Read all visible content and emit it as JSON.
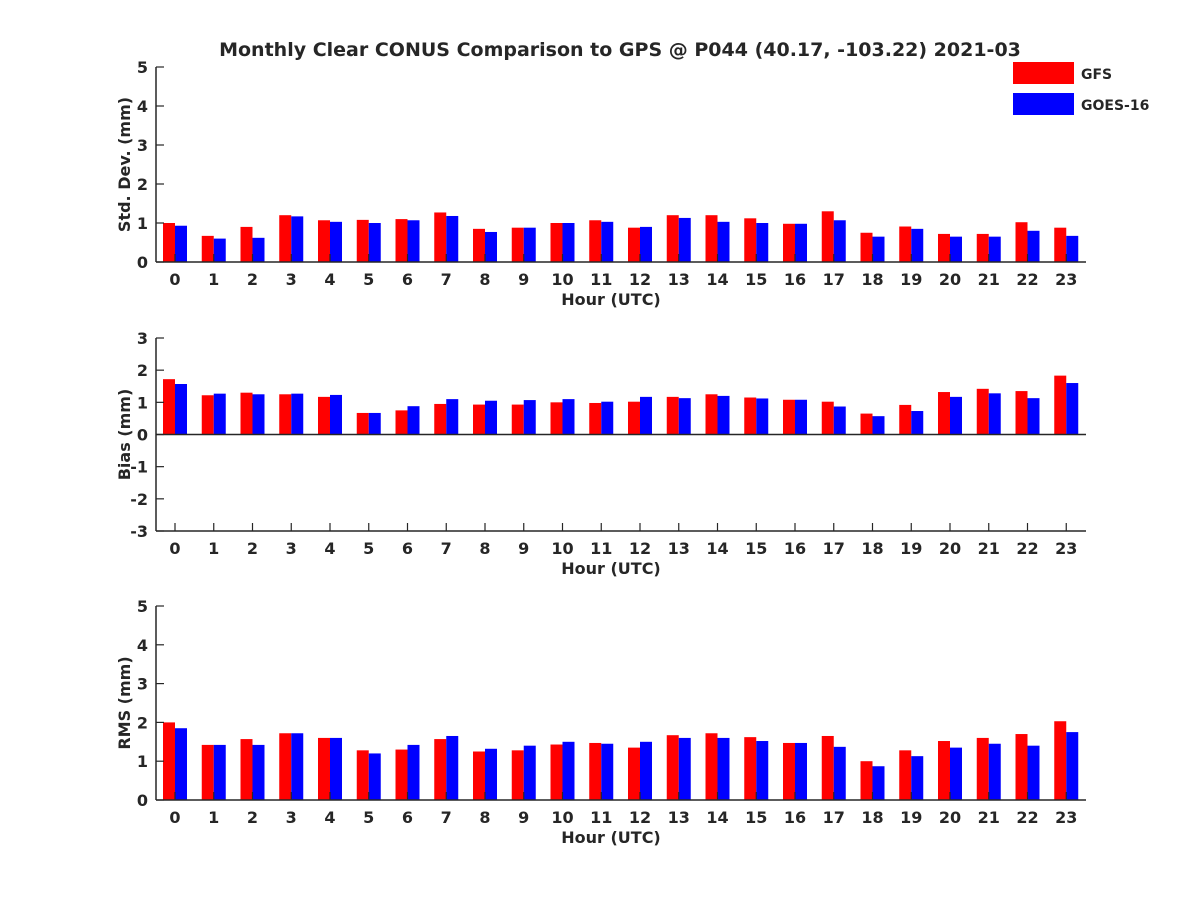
{
  "chart_data": {
    "title": "Monthly Clear CONUS Comparison to GPS @ P044 (40.17, -103.22) 2021-03",
    "legend": {
      "placement": "top-right",
      "entries": [
        {
          "name": "GFS",
          "color": "#ff0000"
        },
        {
          "name": "GOES-16",
          "color": "#0000ff"
        }
      ]
    },
    "categories": [
      "0",
      "1",
      "2",
      "3",
      "4",
      "5",
      "6",
      "7",
      "8",
      "9",
      "10",
      "11",
      "12",
      "13",
      "14",
      "15",
      "16",
      "17",
      "18",
      "19",
      "20",
      "21",
      "22",
      "23"
    ],
    "panels": [
      {
        "type": "bar",
        "xlabel": "Hour (UTC)",
        "ylabel": "Std. Dev. (mm)",
        "ylim": [
          0,
          5
        ],
        "yticks": [
          "0",
          "1",
          "2",
          "3",
          "4",
          "5"
        ],
        "series": [
          {
            "name": "GFS",
            "color": "#ff0000",
            "values": [
              1.0,
              0.67,
              0.9,
              1.2,
              1.07,
              1.08,
              1.1,
              1.27,
              0.85,
              0.88,
              1.0,
              1.07,
              0.88,
              1.2,
              1.2,
              1.12,
              0.98,
              1.3,
              0.75,
              0.91,
              0.72,
              0.72,
              1.02,
              0.88
            ]
          },
          {
            "name": "GOES-16",
            "color": "#0000ff",
            "values": [
              0.93,
              0.6,
              0.62,
              1.17,
              1.03,
              1.0,
              1.07,
              1.18,
              0.77,
              0.88,
              1.0,
              1.03,
              0.9,
              1.13,
              1.03,
              1.0,
              0.98,
              1.07,
              0.65,
              0.85,
              0.65,
              0.65,
              0.8,
              0.67
            ]
          }
        ]
      },
      {
        "type": "bar",
        "xlabel": "Hour (UTC)",
        "ylabel": "Bias (mm)",
        "ylim": [
          -3,
          3
        ],
        "yticks": [
          "-3",
          "-2",
          "-1",
          "0",
          "1",
          "2",
          "3"
        ],
        "series": [
          {
            "name": "GFS",
            "color": "#ff0000",
            "values": [
              1.72,
              1.22,
              1.3,
              1.25,
              1.17,
              0.67,
              0.75,
              0.95,
              0.93,
              0.93,
              1.0,
              0.98,
              1.02,
              1.17,
              1.25,
              1.15,
              1.08,
              1.02,
              0.65,
              0.92,
              1.32,
              1.42,
              1.35,
              1.83
            ]
          },
          {
            "name": "GOES-16",
            "color": "#0000ff",
            "values": [
              1.57,
              1.27,
              1.25,
              1.27,
              1.23,
              0.67,
              0.88,
              1.1,
              1.05,
              1.07,
              1.1,
              1.02,
              1.17,
              1.13,
              1.2,
              1.12,
              1.08,
              0.87,
              0.57,
              0.73,
              1.17,
              1.28,
              1.13,
              1.6
            ]
          }
        ]
      },
      {
        "type": "bar",
        "xlabel": "Hour (UTC)",
        "ylabel": "RMS (mm)",
        "ylim": [
          0,
          5
        ],
        "yticks": [
          "0",
          "1",
          "2",
          "3",
          "4",
          "5"
        ],
        "series": [
          {
            "name": "GFS",
            "color": "#ff0000",
            "values": [
              2.0,
              1.42,
              1.57,
              1.72,
              1.6,
              1.28,
              1.3,
              1.57,
              1.25,
              1.28,
              1.43,
              1.47,
              1.35,
              1.67,
              1.72,
              1.62,
              1.47,
              1.65,
              1.0,
              1.28,
              1.52,
              1.6,
              1.7,
              2.03
            ]
          },
          {
            "name": "GOES-16",
            "color": "#0000ff",
            "values": [
              1.85,
              1.42,
              1.42,
              1.72,
              1.6,
              1.2,
              1.42,
              1.65,
              1.32,
              1.4,
              1.5,
              1.45,
              1.5,
              1.6,
              1.6,
              1.52,
              1.47,
              1.37,
              0.87,
              1.13,
              1.35,
              1.45,
              1.4,
              1.75
            ]
          }
        ]
      }
    ]
  }
}
